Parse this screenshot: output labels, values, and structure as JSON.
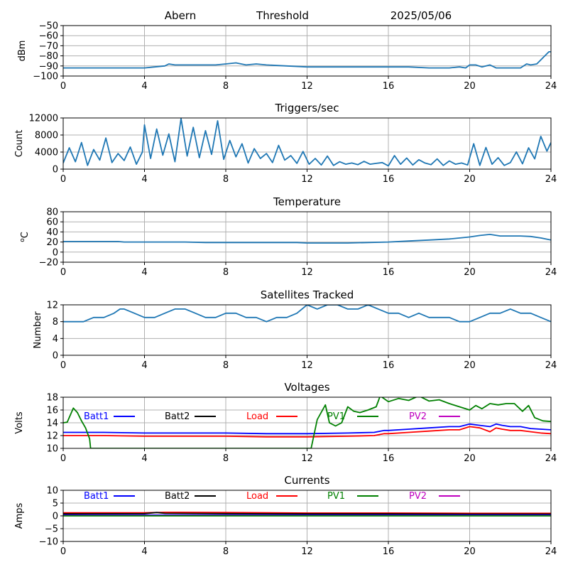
{
  "header": {
    "station": "Abern",
    "subtitle": "Threshold",
    "date": "2025/05/06"
  },
  "colors": {
    "series_default": "#1f77b4",
    "grid": "#b0b0b0",
    "axis": "#000000"
  },
  "chart_data": [
    {
      "type": "line",
      "title": "",
      "xlabel": "",
      "ylabel": "dBm",
      "xlim": [
        0,
        24
      ],
      "ylim": [
        -100,
        -50
      ],
      "xticks": [
        "0",
        "4",
        "8",
        "12",
        "16",
        "20",
        "24"
      ],
      "yticks": [
        "−100",
        "−90",
        "−80",
        "−70",
        "−60",
        "−50"
      ],
      "grid": true,
      "series": [
        {
          "color": "#1f77b4",
          "x": [
            0,
            1,
            2,
            3,
            4,
            4.5,
            5,
            5.2,
            5.5,
            6,
            6.5,
            7,
            7.5,
            8,
            8.5,
            9,
            9.5,
            10,
            11,
            12,
            13,
            14,
            15,
            16,
            17,
            18,
            18.5,
            19,
            19.5,
            19.8,
            20,
            20.3,
            20.6,
            21,
            21.3,
            21.6,
            22,
            22.5,
            22.8,
            23,
            23.3,
            23.6,
            23.9,
            24
          ],
          "y": [
            -92,
            -92,
            -92,
            -92,
            -92,
            -91,
            -90,
            -88,
            -89,
            -89,
            -89,
            -89,
            -89,
            -88,
            -87,
            -89,
            -88,
            -89,
            -90,
            -91,
            -91,
            -91,
            -91,
            -91,
            -91,
            -92,
            -92,
            -92,
            -91,
            -92,
            -89,
            -89,
            -91,
            -89,
            -92,
            -92,
            -92,
            -92,
            -88,
            -89,
            -88,
            -82,
            -76,
            -76
          ]
        }
      ]
    },
    {
      "type": "line",
      "title": "Triggers/sec",
      "xlabel": "",
      "ylabel": "Count",
      "xlim": [
        0,
        24
      ],
      "ylim": [
        0,
        12500
      ],
      "xticks": [
        "0",
        "4",
        "8",
        "12",
        "16",
        "20",
        "24"
      ],
      "yticks": [
        "0",
        "4000",
        "8000",
        "12000"
      ],
      "grid": true,
      "series": [
        {
          "color": "#1f77b4",
          "x": [
            0,
            0.3,
            0.6,
            0.9,
            1.2,
            1.5,
            1.8,
            2.1,
            2.4,
            2.7,
            3.0,
            3.3,
            3.6,
            3.9,
            4.0,
            4.3,
            4.6,
            4.9,
            5.2,
            5.5,
            5.8,
            6.1,
            6.4,
            6.7,
            7.0,
            7.3,
            7.6,
            7.9,
            8.2,
            8.5,
            8.8,
            9.1,
            9.4,
            9.7,
            10.0,
            10.3,
            10.6,
            10.9,
            11.2,
            11.5,
            11.8,
            12.1,
            12.4,
            12.7,
            13.0,
            13.3,
            13.6,
            13.9,
            14.2,
            14.5,
            14.8,
            15.1,
            15.4,
            15.7,
            16.0,
            16.3,
            16.6,
            16.9,
            17.2,
            17.5,
            17.8,
            18.1,
            18.4,
            18.7,
            19.0,
            19.3,
            19.6,
            19.9,
            20.2,
            20.5,
            20.8,
            21.1,
            21.4,
            21.7,
            22.0,
            22.3,
            22.6,
            22.9,
            23.2,
            23.5,
            23.8,
            24.0
          ],
          "y": [
            1500,
            5200,
            1800,
            6500,
            900,
            4800,
            2200,
            7600,
            1600,
            3800,
            2100,
            5400,
            1200,
            4200,
            10800,
            2600,
            9800,
            3400,
            8600,
            1800,
            12400,
            3200,
            10200,
            2800,
            9400,
            3600,
            11800,
            2400,
            7000,
            3000,
            6200,
            1500,
            5000,
            2600,
            3800,
            1600,
            5800,
            2200,
            3300,
            1400,
            4300,
            1200,
            2600,
            1000,
            3200,
            900,
            1800,
            1200,
            1500,
            1100,
            1900,
            1200,
            1400,
            1600,
            800,
            3300,
            1200,
            2700,
            1000,
            2300,
            1500,
            1100,
            2500,
            900,
            2000,
            1200,
            1500,
            1000,
            6200,
            900,
            5300,
            1200,
            2800,
            900,
            1600,
            4200,
            1300,
            5200,
            2500,
            8000,
            4400,
            6500
          ]
        }
      ]
    },
    {
      "type": "line",
      "title": "Temperature",
      "xlabel": "",
      "ylabel": "°C",
      "ylabel_prefix": "o",
      "ylabel_unit": "C",
      "xlim": [
        0,
        24
      ],
      "ylim": [
        -20,
        80
      ],
      "xticks": [
        "0",
        "4",
        "8",
        "12",
        "16",
        "20",
        "24"
      ],
      "yticks": [
        "−20",
        "0",
        "20",
        "40",
        "60",
        "80"
      ],
      "grid": true,
      "series": [
        {
          "color": "#1f77b4",
          "x": [
            0,
            2,
            2.7,
            3,
            4,
            6,
            7,
            8,
            10,
            11.5,
            12,
            14,
            15,
            16,
            17,
            18,
            19,
            20,
            20.5,
            21,
            21.5,
            22,
            22.5,
            23,
            23.5,
            24
          ],
          "y": [
            21,
            21,
            21,
            20,
            20,
            20,
            19,
            19,
            19,
            19,
            18,
            18,
            19,
            20,
            22,
            24,
            26,
            30,
            33,
            35,
            32,
            32,
            32,
            31,
            28,
            24
          ]
        }
      ]
    },
    {
      "type": "line",
      "title": "Satellites Tracked",
      "xlabel": "",
      "ylabel": "Number",
      "xlim": [
        0,
        24
      ],
      "ylim": [
        0,
        12
      ],
      "xticks": [
        "0",
        "4",
        "8",
        "12",
        "16",
        "20",
        "24"
      ],
      "yticks": [
        "0",
        "4",
        "8",
        "12"
      ],
      "grid": true,
      "series": [
        {
          "color": "#1f77b4",
          "x": [
            0,
            0.5,
            1,
            1.5,
            2,
            2.5,
            2.8,
            3,
            3.5,
            4,
            4.5,
            5,
            5.5,
            6,
            6.5,
            7,
            7.5,
            8,
            8.5,
            9,
            9.5,
            10,
            10.5,
            11,
            11.5,
            12,
            12.5,
            13,
            13.5,
            14,
            14.5,
            15,
            15.5,
            16,
            16.5,
            17,
            17.5,
            18,
            18.5,
            19,
            19.5,
            20,
            20.5,
            21,
            21.5,
            22,
            22.5,
            23,
            23.5,
            24
          ],
          "y": [
            8,
            8,
            8,
            9,
            9,
            10,
            11,
            11,
            10,
            9,
            9,
            10,
            11,
            11,
            10,
            9,
            9,
            10,
            10,
            9,
            9,
            8,
            9,
            9,
            10,
            12,
            11,
            12,
            12,
            11,
            11,
            12,
            11,
            10,
            10,
            9,
            10,
            9,
            9,
            9,
            8,
            8,
            9,
            10,
            10,
            11,
            10,
            10,
            9,
            8
          ]
        }
      ]
    },
    {
      "type": "line",
      "title": "Voltages",
      "xlabel": "",
      "ylabel": "Volts",
      "xlim": [
        0,
        24
      ],
      "ylim": [
        10,
        18
      ],
      "xticks": [
        "0",
        "4",
        "8",
        "12",
        "16",
        "20",
        "24"
      ],
      "yticks": [
        "10",
        "12",
        "14",
        "16",
        "18"
      ],
      "grid": true,
      "legend": [
        {
          "name": "Batt1",
          "color": "#0000ff"
        },
        {
          "name": "Batt2",
          "color": "#000000"
        },
        {
          "name": "Load",
          "color": "#ff0000"
        },
        {
          "name": "PV1",
          "color": "#008000"
        },
        {
          "name": "PV2",
          "color": "#bf00bf"
        }
      ],
      "series": [
        {
          "name": "Batt1",
          "color": "#0000ff",
          "x": [
            0,
            2,
            4,
            6,
            8,
            10,
            12,
            14,
            15.3,
            15.8,
            16,
            17,
            18,
            19,
            19.5,
            20,
            20.5,
            21,
            21.3,
            21.6,
            22,
            22.5,
            23,
            23.5,
            24
          ],
          "y": [
            12.5,
            12.5,
            12.4,
            12.4,
            12.4,
            12.3,
            12.3,
            12.4,
            12.5,
            12.8,
            12.8,
            13.0,
            13.2,
            13.4,
            13.4,
            13.8,
            13.6,
            13.4,
            13.8,
            13.6,
            13.4,
            13.4,
            13.1,
            13.0,
            12.9
          ]
        },
        {
          "name": "Load",
          "color": "#ff0000",
          "x": [
            0,
            2,
            4,
            6,
            8,
            10,
            12,
            14,
            15.3,
            15.8,
            16,
            17,
            18,
            19,
            19.5,
            20,
            20.5,
            21,
            21.3,
            21.6,
            22,
            22.5,
            23,
            23.5,
            24
          ],
          "y": [
            12.0,
            12.0,
            11.9,
            11.9,
            11.9,
            11.8,
            11.8,
            11.9,
            12.0,
            12.3,
            12.3,
            12.5,
            12.7,
            12.9,
            12.9,
            13.4,
            13.2,
            12.6,
            13.2,
            13.0,
            12.8,
            12.8,
            12.6,
            12.4,
            12.3
          ]
        },
        {
          "name": "PV1",
          "color": "#008000",
          "x": [
            0,
            0.2,
            0.5,
            0.7,
            0.9,
            1.1,
            1.3,
            1.35,
            12.2,
            12.5,
            12.9,
            13.1,
            13.4,
            13.7,
            14.0,
            14.3,
            14.6,
            15.0,
            15.4,
            15.6,
            16.0,
            16.5,
            17.0,
            17.5,
            18.0,
            18.5,
            19.0,
            19.5,
            20.0,
            20.3,
            20.6,
            21.0,
            21.4,
            21.8,
            22.2,
            22.6,
            22.9,
            23.2,
            23.6,
            24.0
          ],
          "y": [
            14.0,
            14.1,
            16.3,
            15.6,
            14.3,
            13.2,
            11.5,
            10.0,
            10.0,
            14.5,
            16.8,
            14.0,
            13.5,
            14.0,
            16.5,
            15.8,
            15.6,
            16.0,
            16.5,
            18.2,
            17.3,
            17.8,
            17.5,
            18.2,
            17.4,
            17.6,
            17.0,
            16.5,
            16.0,
            16.7,
            16.2,
            17.0,
            16.8,
            17.0,
            17.0,
            15.8,
            16.7,
            14.8,
            14.3,
            14.2
          ]
        }
      ]
    },
    {
      "type": "line",
      "title": "Currents",
      "xlabel": "",
      "ylabel": "Amps",
      "xlim": [
        0,
        24
      ],
      "ylim": [
        -10,
        10
      ],
      "xticks": [
        "0",
        "4",
        "8",
        "12",
        "16",
        "20",
        "24"
      ],
      "yticks": [
        "−10",
        "−5",
        "0",
        "5",
        "10"
      ],
      "grid": true,
      "legend": [
        {
          "name": "Batt1",
          "color": "#0000ff"
        },
        {
          "name": "Batt2",
          "color": "#000000"
        },
        {
          "name": "Load",
          "color": "#ff0000"
        },
        {
          "name": "PV1",
          "color": "#008000"
        },
        {
          "name": "PV2",
          "color": "#bf00bf"
        }
      ],
      "series": [
        {
          "name": "Load",
          "color": "#ff0000",
          "x": [
            0,
            4,
            5,
            8,
            12,
            16,
            20,
            24
          ],
          "y": [
            1.2,
            1.2,
            1.4,
            1.3,
            1.1,
            1.1,
            1.0,
            1.0
          ]
        },
        {
          "name": "Batt2",
          "color": "#000000",
          "x": [
            0,
            4,
            4.6,
            5,
            8,
            12,
            16,
            20,
            24
          ],
          "y": [
            0.8,
            0.9,
            1.3,
            1.0,
            0.9,
            0.8,
            0.8,
            0.7,
            0.7
          ]
        },
        {
          "name": "Batt1",
          "color": "#0000ff",
          "x": [
            0,
            8,
            16,
            24
          ],
          "y": [
            0.3,
            0.3,
            0.3,
            0.3
          ]
        },
        {
          "name": "PV2",
          "color": "#bf00bf",
          "x": [
            0,
            8,
            16,
            24
          ],
          "y": [
            0.1,
            0.1,
            0.1,
            0.1
          ]
        },
        {
          "name": "PV1",
          "color": "#008000",
          "x": [
            0,
            8,
            16,
            24
          ],
          "y": [
            0.0,
            0.0,
            0.0,
            0.0
          ]
        }
      ]
    }
  ]
}
